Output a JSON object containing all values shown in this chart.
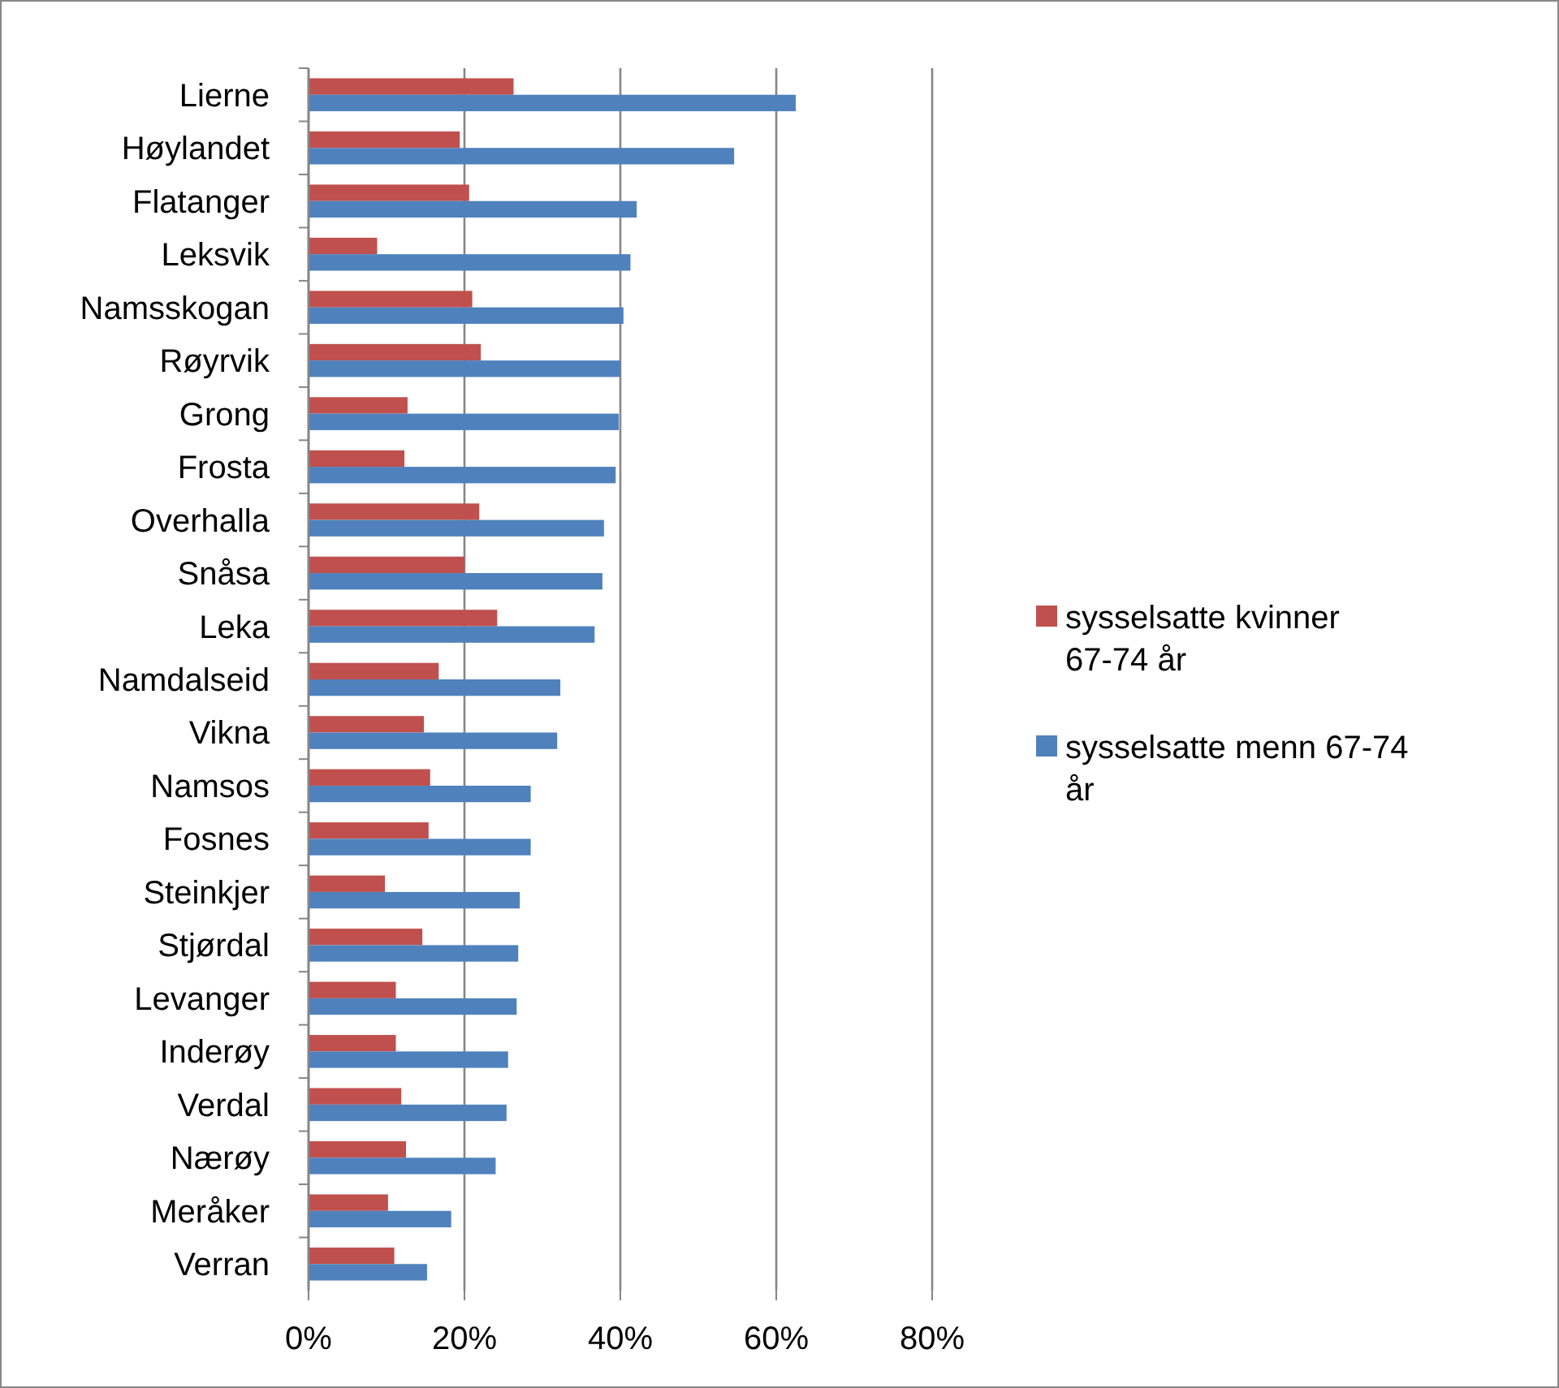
{
  "chart_data": {
    "type": "bar",
    "orientation": "horizontal",
    "categories": [
      "Lierne",
      "Høylandet",
      "Flatanger",
      "Leksvik",
      "Namsskogan",
      "Røyrvik",
      "Grong",
      "Frosta",
      "Overhalla",
      "Snåsa",
      "Leka",
      "Namdalseid",
      "Vikna",
      "Namsos",
      "Fosnes",
      "Steinkjer",
      "Stjørdal",
      "Levanger",
      "Inderøy",
      "Verdal",
      "Nærøy",
      "Meråker",
      "Verran"
    ],
    "series": [
      {
        "name": "sysselsatte kvinner 67-74 år",
        "color": "#c0504d",
        "values": [
          26.3,
          19.4,
          20.6,
          8.8,
          21.0,
          22.1,
          12.7,
          12.3,
          21.9,
          20.0,
          24.2,
          16.7,
          14.8,
          15.6,
          15.4,
          9.8,
          14.6,
          11.2,
          11.2,
          11.9,
          12.5,
          10.2,
          11.0
        ]
      },
      {
        "name": "sysselsatte menn 67-74 år",
        "color": "#4f81bd",
        "values": [
          62.5,
          54.6,
          42.1,
          41.3,
          40.4,
          40.0,
          39.8,
          39.4,
          37.9,
          37.7,
          36.7,
          32.3,
          31.9,
          28.5,
          28.5,
          27.1,
          26.9,
          26.7,
          25.6,
          25.4,
          24.0,
          18.3,
          15.2
        ]
      }
    ],
    "xlim": [
      0,
      80
    ],
    "xticks": [
      {
        "value": 0,
        "label": "0%"
      },
      {
        "value": 20,
        "label": "20%"
      },
      {
        "value": 40,
        "label": "40%"
      },
      {
        "value": 60,
        "label": "60%"
      },
      {
        "value": 80,
        "label": "80%"
      }
    ],
    "grid": "x",
    "legend": "right"
  }
}
